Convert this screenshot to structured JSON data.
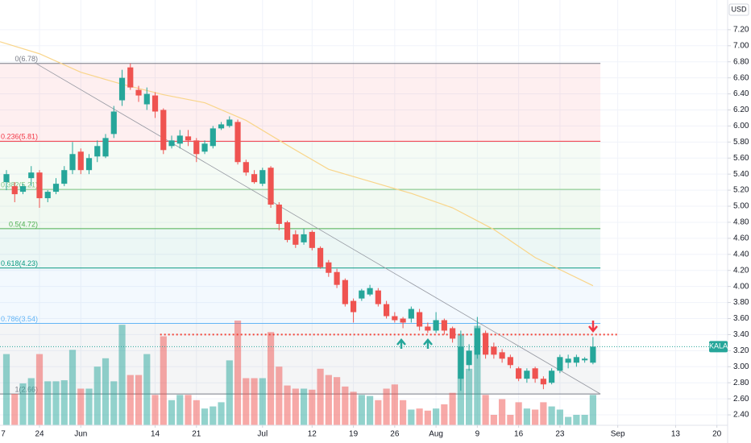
{
  "chart_data": {
    "type": "candlestick",
    "symbol": "KALA",
    "currency": "USD",
    "up_color": "#26a69a",
    "down_color": "#ef5350",
    "grid": true,
    "x": [
      -4,
      -3,
      -2,
      -1,
      0,
      1,
      2,
      3,
      4,
      5,
      6,
      7,
      8,
      9,
      10,
      11,
      12,
      13,
      14,
      15,
      16,
      17,
      18,
      19,
      20,
      21,
      22,
      23,
      24,
      25,
      26,
      27,
      28,
      29,
      30,
      31,
      32,
      33,
      34,
      35,
      36,
      37,
      38,
      39,
      40,
      41,
      42,
      43,
      44,
      45,
      46,
      47,
      48,
      49,
      50,
      51,
      52,
      53,
      54,
      55,
      56,
      57,
      58,
      59,
      60,
      61,
      62,
      63,
      64,
      65,
      66,
      67
    ],
    "open": [
      5.3,
      5.25,
      5.18,
      5.35,
      5.42,
      5.1,
      5.18,
      5.28,
      5.45,
      5.68,
      5.45,
      5.62,
      5.62,
      5.9,
      6.32,
      6.73,
      6.45,
      6.27,
      6.38,
      6.2,
      5.75,
      5.78,
      5.87,
      5.82,
      5.68,
      5.75,
      5.97,
      6.0,
      6.05,
      5.55,
      5.4,
      5.28,
      5.48,
      5.02,
      4.8,
      4.65,
      4.55,
      4.68,
      4.48,
      4.3,
      4.18,
      4.08,
      3.82,
      3.85,
      3.9,
      3.95,
      3.78,
      3.63,
      3.6,
      3.6,
      3.68,
      3.5,
      3.45,
      3.58,
      3.48,
      2.85,
      3.02,
      3.15,
      3.42,
      3.25,
      3.18,
      3.12,
      2.98,
      2.85,
      2.98,
      2.85,
      2.8,
      2.95,
      3.05,
      3.05,
      3.08,
      3.05
    ],
    "high": [
      5.45,
      5.3,
      5.28,
      5.5,
      5.45,
      5.2,
      5.35,
      5.5,
      5.8,
      5.72,
      5.65,
      5.82,
      5.9,
      6.25,
      6.7,
      6.78,
      6.5,
      6.48,
      6.42,
      6.22,
      5.88,
      5.95,
      5.95,
      5.85,
      5.82,
      6.0,
      6.05,
      6.12,
      6.08,
      5.58,
      5.45,
      5.48,
      5.5,
      5.05,
      4.82,
      4.7,
      4.72,
      4.7,
      4.5,
      4.33,
      4.22,
      4.1,
      3.85,
      3.97,
      4.02,
      3.98,
      3.82,
      3.68,
      3.62,
      3.75,
      3.72,
      3.55,
      3.68,
      3.6,
      3.5,
      3.45,
      3.28,
      3.62,
      3.45,
      3.3,
      3.22,
      3.15,
      3.0,
      2.98,
      3.0,
      2.88,
      2.98,
      3.15,
      3.15,
      3.15,
      3.12,
      3.37
    ],
    "low": [
      5.2,
      5.05,
      5.15,
      5.25,
      4.98,
      5.05,
      5.15,
      5.25,
      5.4,
      5.4,
      5.4,
      5.55,
      5.6,
      5.85,
      6.25,
      6.45,
      6.3,
      6.2,
      6.1,
      5.65,
      5.72,
      5.72,
      5.75,
      5.55,
      5.65,
      5.72,
      5.95,
      5.98,
      5.52,
      5.38,
      5.28,
      5.25,
      4.98,
      4.7,
      4.55,
      4.48,
      4.52,
      4.45,
      4.22,
      4.12,
      3.98,
      3.75,
      3.55,
      3.82,
      3.88,
      3.75,
      3.6,
      3.55,
      3.48,
      3.55,
      3.45,
      3.42,
      3.42,
      3.4,
      3.3,
      2.7,
      2.95,
      3.1,
      3.1,
      3.1,
      3.05,
      2.98,
      2.82,
      2.8,
      2.8,
      2.72,
      2.78,
      2.92,
      2.98,
      3.0,
      3.05,
      3.03
    ],
    "close": [
      5.4,
      5.15,
      5.25,
      5.42,
      5.1,
      5.18,
      5.28,
      5.45,
      5.65,
      5.45,
      5.6,
      5.75,
      5.85,
      6.18,
      6.6,
      6.48,
      6.38,
      6.4,
      6.18,
      5.7,
      5.82,
      5.88,
      5.82,
      5.65,
      5.78,
      5.97,
      6.02,
      6.08,
      5.55,
      5.42,
      5.3,
      5.45,
      5.02,
      4.78,
      4.58,
      4.52,
      4.65,
      4.48,
      4.24,
      4.17,
      4.02,
      3.78,
      3.68,
      3.95,
      3.98,
      3.78,
      3.63,
      3.58,
      3.55,
      3.72,
      3.5,
      3.45,
      3.58,
      3.45,
      3.35,
      3.25,
      3.2,
      3.48,
      3.15,
      3.15,
      3.1,
      3.02,
      2.85,
      2.95,
      2.85,
      2.78,
      2.95,
      3.12,
      3.1,
      3.12,
      3.1,
      3.25
    ],
    "volume": [
      68,
      30,
      40,
      45,
      68,
      42,
      42,
      43,
      72,
      35,
      35,
      56,
      64,
      42,
      96,
      48,
      48,
      68,
      29,
      85,
      24,
      29,
      29,
      24,
      16,
      18,
      22,
      62,
      100,
      45,
      45,
      45,
      89,
      56,
      38,
      35,
      35,
      34,
      54,
      48,
      46,
      37,
      32,
      29,
      28,
      24,
      35,
      39,
      24,
      15,
      16,
      14,
      16,
      20,
      31,
      87,
      54,
      95,
      29,
      10,
      25,
      10,
      22,
      16,
      15,
      22,
      18,
      15,
      8,
      10,
      10,
      29
    ],
    "volume_lim": [
      0,
      100
    ],
    "xlim": [
      -4.78,
      83.3
    ],
    "ylim": [
      2.27,
      7.57
    ],
    "xticks": [
      {
        "value": -5,
        "label": "7"
      },
      {
        "value": 0,
        "label": "24"
      },
      {
        "value": 5,
        "label": "Jun"
      },
      {
        "value": 14,
        "label": "14"
      },
      {
        "value": 19,
        "label": "21"
      },
      {
        "value": 27,
        "label": "Jul"
      },
      {
        "value": 33,
        "label": "12"
      },
      {
        "value": 38,
        "label": "19"
      },
      {
        "value": 43,
        "label": "26"
      },
      {
        "value": 48,
        "label": "Aug"
      },
      {
        "value": 53,
        "label": "9"
      },
      {
        "value": 58,
        "label": "16"
      },
      {
        "value": 63,
        "label": "23"
      },
      {
        "value": 70,
        "label": "Sep"
      },
      {
        "value": 77,
        "label": "13"
      },
      {
        "value": 82,
        "label": "20"
      }
    ],
    "yticks": [
      {
        "value": 2.4,
        "label": "2.40"
      },
      {
        "value": 2.6,
        "label": "2.60"
      },
      {
        "value": 2.8,
        "label": "2.80"
      },
      {
        "value": 3.0,
        "label": "3.00"
      },
      {
        "value": 3.2,
        "label": "3.20"
      },
      {
        "value": 3.4,
        "label": "3.40"
      },
      {
        "value": 3.6,
        "label": "3.60"
      },
      {
        "value": 3.8,
        "label": "3.80"
      },
      {
        "value": 4.0,
        "label": "4.00"
      },
      {
        "value": 4.2,
        "label": "4.20"
      },
      {
        "value": 4.4,
        "label": "4.40"
      },
      {
        "value": 4.6,
        "label": "4.60"
      },
      {
        "value": 4.8,
        "label": "4.80"
      },
      {
        "value": 5.0,
        "label": "5.00"
      },
      {
        "value": 5.2,
        "label": "5.20"
      },
      {
        "value": 5.4,
        "label": "5.40"
      },
      {
        "value": 5.6,
        "label": "5.60"
      },
      {
        "value": 5.8,
        "label": "5.80"
      },
      {
        "value": 6.0,
        "label": "6.00"
      },
      {
        "value": 6.2,
        "label": "6.20"
      },
      {
        "value": 6.4,
        "label": "6.40"
      },
      {
        "value": 6.6,
        "label": "6.60"
      },
      {
        "value": 6.8,
        "label": "6.80"
      },
      {
        "value": 7.0,
        "label": "7.00"
      },
      {
        "value": 7.2,
        "label": "7.20"
      }
    ],
    "fib_range": [
      -10,
      67.9
    ],
    "fib_levels": [
      {
        "value": 6.78,
        "label": "0(6.78)",
        "color": "#787b86"
      },
      {
        "value": 5.81,
        "label": "0.236(5.81)",
        "color": "#f23645"
      },
      {
        "value": 5.21,
        "label": "0.382(5.21)",
        "color": "#81c784"
      },
      {
        "value": 4.72,
        "label": "0.5(4.72)",
        "color": "#4caf50"
      },
      {
        "value": 4.23,
        "label": "0.618(4.23)",
        "color": "#089981"
      },
      {
        "value": 3.54,
        "label": "0.786(3.54)",
        "color": "#64b5f6"
      },
      {
        "value": 2.66,
        "label": "1(2.66)",
        "color": "#787b86"
      }
    ],
    "trendline": {
      "x": [
        -0.6,
        67.9
      ],
      "values": [
        6.79,
        2.66
      ],
      "color": "#9598a1"
    },
    "horizontal_line": {
      "x": [
        14.6,
        70.2
      ],
      "value": 3.4,
      "color": "#f44336"
    },
    "moving_average": {
      "color": "#f9d58a",
      "x": [
        -4.78,
        0,
        5,
        10,
        15,
        20,
        25,
        30,
        35,
        40,
        45,
        50,
        55,
        60,
        67
      ],
      "values": [
        7.05,
        6.9,
        6.67,
        6.52,
        6.39,
        6.29,
        6.07,
        5.76,
        5.46,
        5.31,
        5.16,
        4.98,
        4.71,
        4.36,
        4.01
      ]
    },
    "last_price": {
      "value": 3.25,
      "label": "KALA"
    }
  }
}
